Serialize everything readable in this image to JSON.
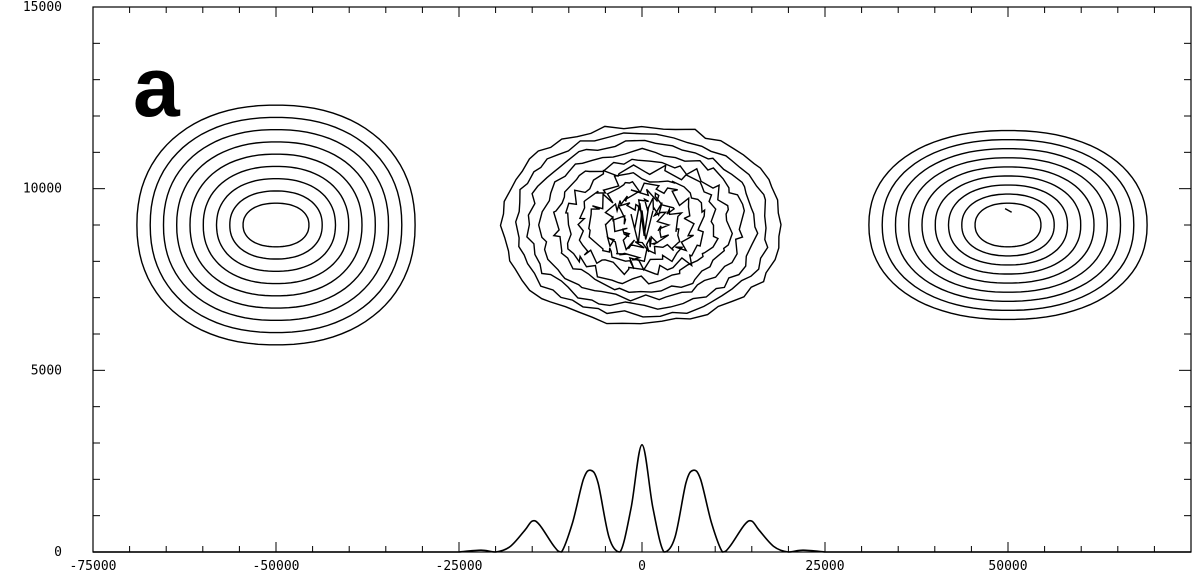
{
  "chart_data": {
    "type": "contour",
    "panel_label": "a",
    "xlim": [
      -75000,
      75000
    ],
    "ylim": [
      0,
      15000
    ],
    "x_ticks": [
      -75000,
      -50000,
      -25000,
      0,
      25000,
      50000
    ],
    "x_tick_labels": [
      "-75000",
      "-50000",
      "-25000",
      "0",
      "25000",
      "50000"
    ],
    "y_ticks": [
      0,
      5000,
      10000,
      15000
    ],
    "y_tick_labels": [
      "0",
      "5000",
      "10000",
      "15000"
    ],
    "x_minor_step": 5000,
    "y_minor_step": 1000,
    "contour_groups": [
      {
        "center": [
          -50000,
          9000
        ],
        "levels": 9,
        "outer_half_width": 19000,
        "outer_half_height": 3300,
        "inner_half_width": 4500,
        "inner_half_height": 600,
        "noisy": false
      },
      {
        "center": [
          0,
          9000
        ],
        "levels": 10,
        "outer_half_width": 19000,
        "outer_half_height": 2700,
        "inner_half_width": 3000,
        "inner_half_height": 600,
        "noisy": true
      },
      {
        "center": [
          50000,
          9000
        ],
        "levels": 9,
        "outer_half_width": 19000,
        "outer_half_height": 2600,
        "inner_half_width": 4500,
        "inner_half_height": 600,
        "noisy": false
      }
    ],
    "profile": {
      "x": [
        -25000,
        -22000,
        -20000,
        -18000,
        -16000,
        -15000,
        -14000,
        -12000,
        -11000,
        -9500,
        -8000,
        -7000,
        -6000,
        -4500,
        -3000,
        -1500,
        0,
        1500,
        3000,
        4500,
        6000,
        7000,
        8000,
        9500,
        11000,
        12000,
        14000,
        15000,
        16000,
        18000,
        20000,
        22000,
        25000
      ],
      "y": [
        0,
        50,
        0,
        150,
        600,
        850,
        750,
        150,
        0,
        800,
        2000,
        2250,
        1900,
        400,
        0,
        1200,
        2950,
        1200,
        0,
        400,
        1900,
        2250,
        2000,
        800,
        0,
        150,
        750,
        850,
        600,
        150,
        0,
        50,
        0
      ]
    }
  }
}
